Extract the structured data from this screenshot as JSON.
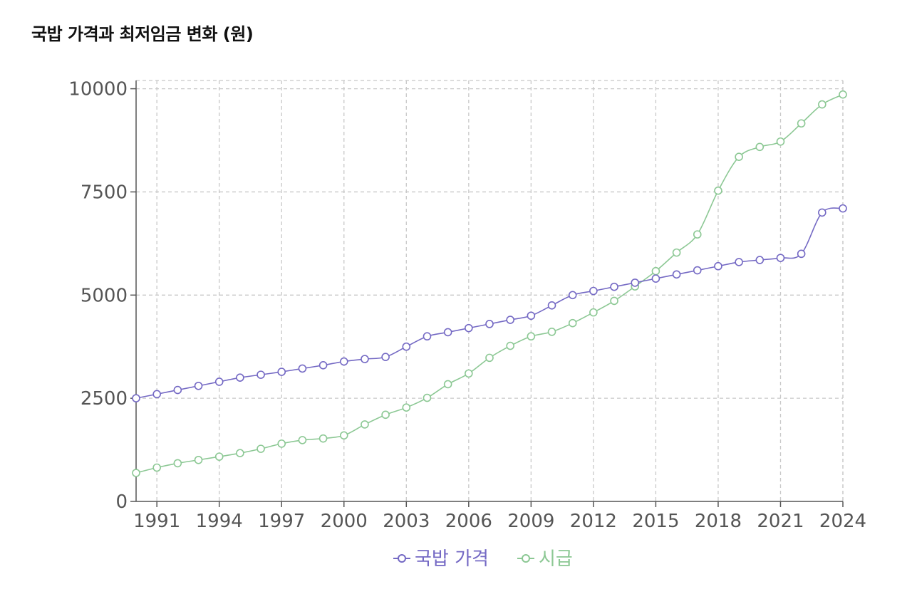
{
  "title": "국밥 가격과 최저임금 변화 (원)",
  "chart_data": {
    "type": "line",
    "x": [
      1990,
      1991,
      1992,
      1993,
      1994,
      1995,
      1996,
      1997,
      1998,
      1999,
      2000,
      2001,
      2002,
      2003,
      2004,
      2005,
      2006,
      2007,
      2008,
      2009,
      2010,
      2011,
      2012,
      2013,
      2014,
      2015,
      2016,
      2017,
      2018,
      2019,
      2020,
      2021,
      2022,
      2023,
      2024
    ],
    "x_ticks": [
      "1991",
      "1994",
      "1997",
      "2000",
      "2003",
      "2006",
      "2009",
      "2012",
      "2015",
      "2018",
      "2021",
      "2024"
    ],
    "y_ticks": [
      "0",
      "2500",
      "5000",
      "7500",
      "10000"
    ],
    "ylim": [
      0,
      10200
    ],
    "grid": true,
    "legend_position": "bottom",
    "series": [
      {
        "name": "국밥 가격",
        "color": "#7469c4",
        "values": [
          2500,
          2600,
          2700,
          2800,
          2900,
          3000,
          3070,
          3140,
          3220,
          3300,
          3390,
          3450,
          3500,
          3750,
          4000,
          4100,
          4200,
          4300,
          4400,
          4500,
          4750,
          5000,
          5100,
          5200,
          5300,
          5400,
          5500,
          5600,
          5700,
          5800,
          5850,
          5900,
          6000,
          7000,
          7100
        ]
      },
      {
        "name": "시급",
        "color": "#8cc894",
        "values": [
          690,
          820,
          925,
          1005,
          1085,
          1170,
          1275,
          1400,
          1485,
          1525,
          1600,
          1865,
          2100,
          2275,
          2510,
          2840,
          3100,
          3480,
          3770,
          4000,
          4110,
          4320,
          4580,
          4860,
          5210,
          5580,
          6030,
          6470,
          7530,
          8350,
          8590,
          8720,
          9160,
          9620,
          9860
        ]
      }
    ]
  }
}
